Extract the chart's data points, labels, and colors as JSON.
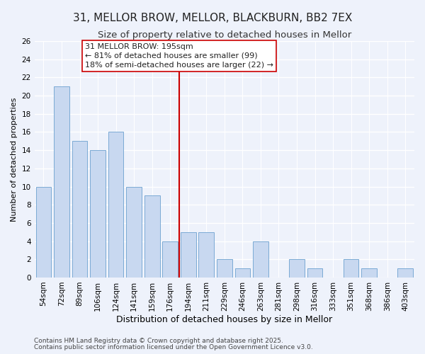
{
  "title": "31, MELLOR BROW, MELLOR, BLACKBURN, BB2 7EX",
  "subtitle": "Size of property relative to detached houses in Mellor",
  "xlabel": "Distribution of detached houses by size in Mellor",
  "ylabel": "Number of detached properties",
  "bar_labels": [
    "54sqm",
    "72sqm",
    "89sqm",
    "106sqm",
    "124sqm",
    "141sqm",
    "159sqm",
    "176sqm",
    "194sqm",
    "211sqm",
    "229sqm",
    "246sqm",
    "263sqm",
    "281sqm",
    "298sqm",
    "316sqm",
    "333sqm",
    "351sqm",
    "368sqm",
    "386sqm",
    "403sqm"
  ],
  "bar_values": [
    10,
    21,
    15,
    14,
    16,
    10,
    9,
    4,
    5,
    5,
    2,
    1,
    4,
    0,
    2,
    1,
    0,
    2,
    1,
    0,
    1
  ],
  "bar_color": "#c8d8f0",
  "bar_edge_color": "#7baad4",
  "background_color": "#eef2fb",
  "grid_color": "#ffffff",
  "vline_x_index": 8,
  "vline_color": "#cc0000",
  "ylim_max": 26,
  "yticks": [
    0,
    2,
    4,
    6,
    8,
    10,
    12,
    14,
    16,
    18,
    20,
    22,
    24,
    26
  ],
  "annotation_title": "31 MELLOR BROW: 195sqm",
  "annotation_line1": "← 81% of detached houses are smaller (99)",
  "annotation_line2": "18% of semi-detached houses are larger (22) →",
  "footer1": "Contains HM Land Registry data © Crown copyright and database right 2025.",
  "footer2": "Contains public sector information licensed under the Open Government Licence v3.0.",
  "title_fontsize": 11,
  "subtitle_fontsize": 9.5,
  "xlabel_fontsize": 9,
  "ylabel_fontsize": 8,
  "tick_fontsize": 7.5,
  "annotation_fontsize": 8,
  "footer_fontsize": 6.5
}
